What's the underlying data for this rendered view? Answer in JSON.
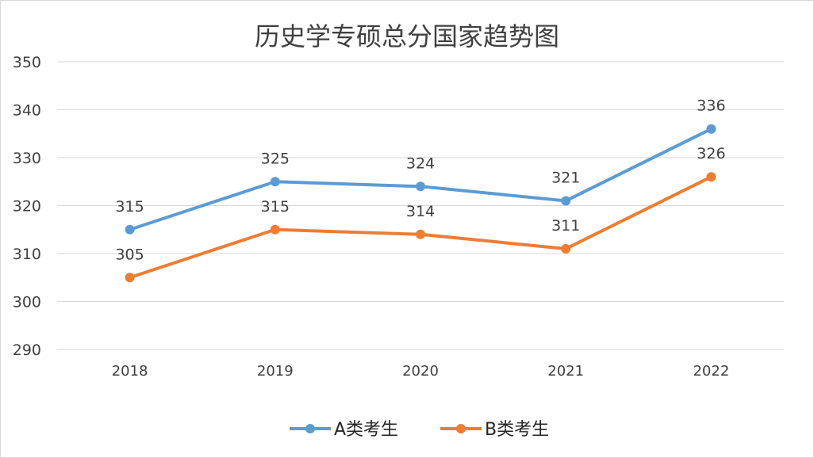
{
  "chart_data": {
    "type": "line",
    "title": "历史学专硕总分国家趋势图",
    "categories": [
      "2018",
      "2019",
      "2020",
      "2021",
      "2022"
    ],
    "series": [
      {
        "name": "A类考生",
        "values": [
          315,
          325,
          324,
          321,
          336
        ],
        "color": "#5B9BD5"
      },
      {
        "name": "B类考生",
        "values": [
          305,
          315,
          314,
          311,
          326
        ],
        "color": "#ED7D31"
      }
    ],
    "ylim": [
      290,
      350
    ],
    "yticks": [
      290,
      300,
      310,
      320,
      330,
      340,
      350
    ],
    "xlabel": "",
    "ylabel": "",
    "grid": true,
    "legend": "bottom"
  }
}
